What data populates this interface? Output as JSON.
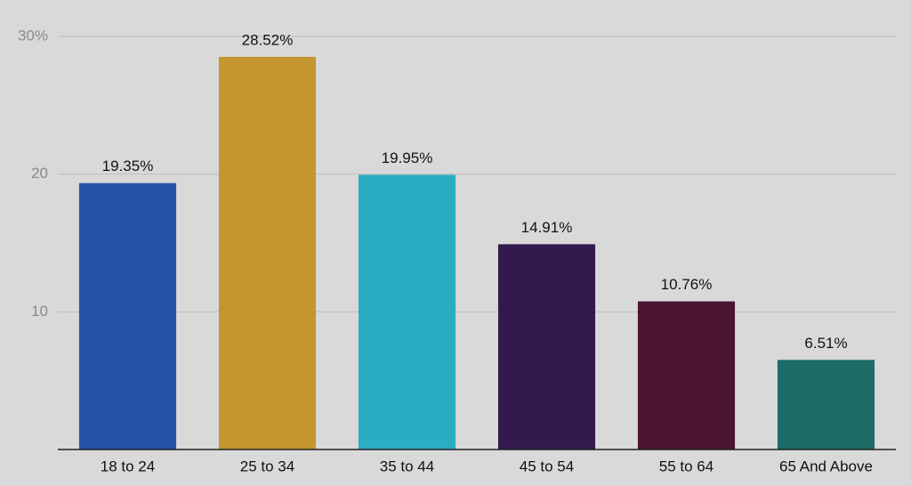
{
  "chart_data": {
    "type": "bar",
    "categories": [
      "18 to 24",
      "25 to 34",
      "35 to 44",
      "45 to 54",
      "55 to 64",
      "65 And Above"
    ],
    "values": [
      19.35,
      28.52,
      19.95,
      14.91,
      10.76,
      6.51
    ],
    "value_labels": [
      "19.35%",
      "28.52%",
      "19.95%",
      "14.91%",
      "10.76%",
      "6.51%"
    ],
    "colors": [
      "#2553a8",
      "#c4962e",
      "#2aadc2",
      "#34194f",
      "#4a1432",
      "#1c6b66"
    ],
    "ylim": [
      0,
      30
    ],
    "yticks": [
      10,
      20,
      {
        "value": 30,
        "label": "30%"
      }
    ],
    "grid": true
  }
}
